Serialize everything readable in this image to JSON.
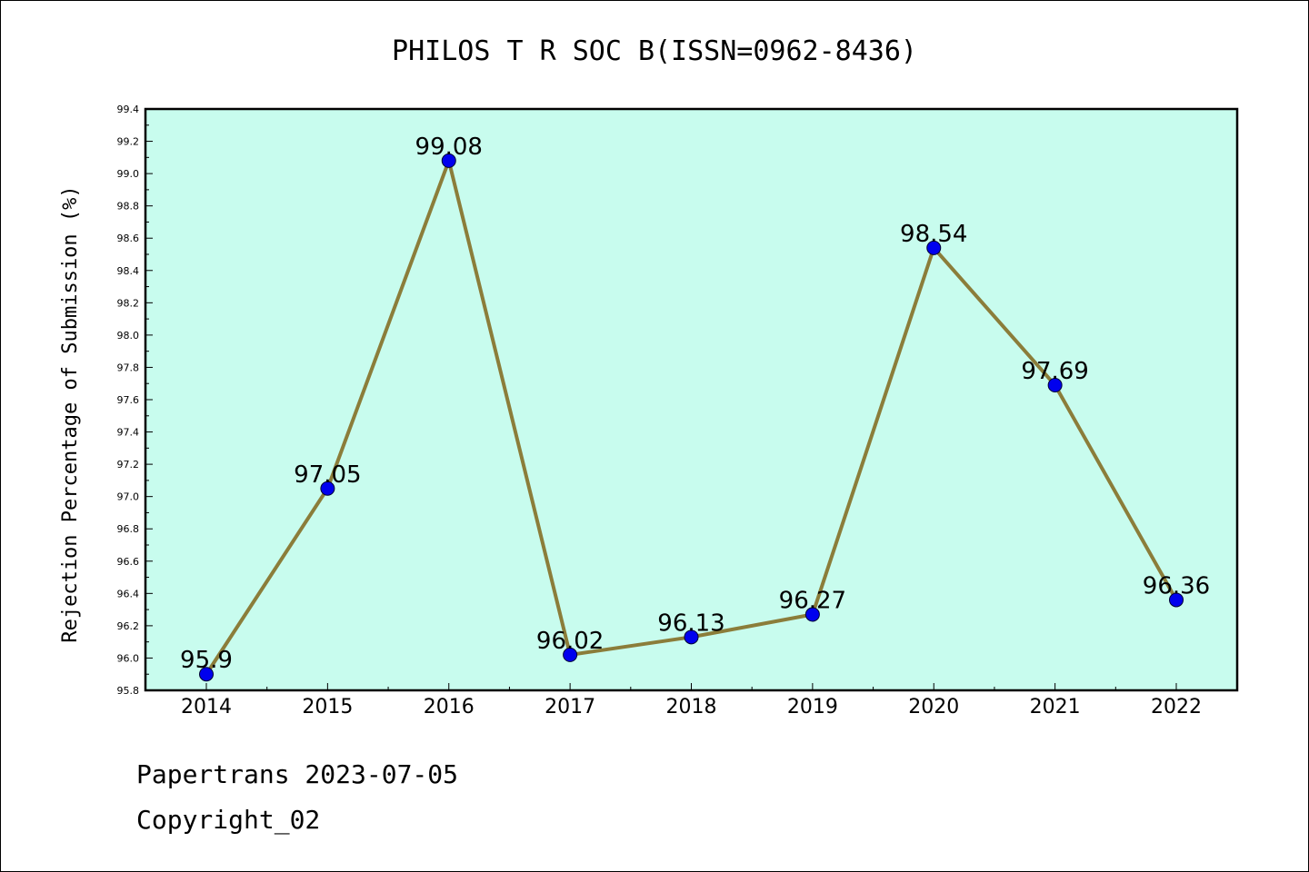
{
  "chart_data": {
    "type": "line",
    "title": "PHILOS T R SOC B(ISSN=0962-8436)",
    "ylabel": "Rejection Percentage of Submission (%)",
    "xlabel": "",
    "categories": [
      "2014",
      "2015",
      "2016",
      "2017",
      "2018",
      "2019",
      "2020",
      "2021",
      "2022"
    ],
    "values": [
      95.9,
      97.05,
      99.08,
      96.02,
      96.13,
      96.27,
      98.54,
      97.69,
      96.36
    ],
    "data_labels": [
      "95.9",
      "97.05",
      "99.08",
      "96.02",
      "96.13",
      "96.27",
      "98.54",
      "97.69",
      "96.36"
    ],
    "ylim": [
      95.8,
      99.4
    ],
    "yticks": [
      "95.8",
      "96.0",
      "96.2",
      "96.4",
      "96.6",
      "96.8",
      "97.0",
      "97.2",
      "97.4",
      "97.6",
      "97.8",
      "98.0",
      "98.2",
      "98.4",
      "98.6",
      "98.8",
      "99.0",
      "99.2",
      "99.4"
    ],
    "grid": false,
    "colors": {
      "background": "#c8fcee",
      "line": "#8b7d3a",
      "marker": "#0000ee"
    }
  },
  "footer": {
    "line1": "Papertrans 2023-07-05",
    "line2": "Copyright_02"
  }
}
